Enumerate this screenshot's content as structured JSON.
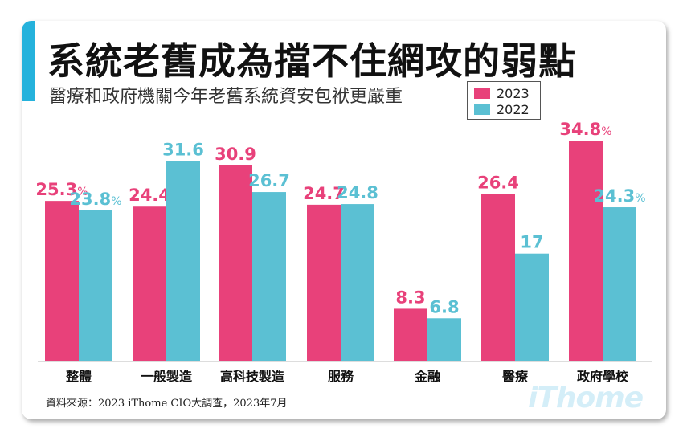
{
  "title": "系統老舊成為擋不住網攻的弱點",
  "subtitle": "醫療和政府機關今年老舊系統資安包袱更嚴重",
  "source": "資料來源：2023 iThome CIO大調查，2023年7月",
  "logo": "iThome",
  "colors": {
    "accent": "#25b2dc",
    "series2023": "#e8417a",
    "series2022": "#5bc0d3"
  },
  "chart_data": {
    "type": "bar",
    "categories": [
      "整體",
      "一般製造",
      "高科技製造",
      "服務",
      "金融",
      "醫療",
      "政府學校"
    ],
    "ylim": [
      0,
      36
    ],
    "grid": false,
    "legend_position": "top-right",
    "series": [
      {
        "name": "2023",
        "values": [
          25.3,
          24.4,
          30.9,
          24.7,
          8.3,
          26.4,
          34.8
        ],
        "labels": [
          "25.3",
          "24.4",
          "30.9",
          "24.7",
          "8.3",
          "26.4",
          "34.8"
        ],
        "pct": [
          "%",
          "",
          "",
          "",
          "",
          "",
          "%"
        ]
      },
      {
        "name": "2022",
        "values": [
          23.8,
          31.6,
          26.7,
          24.8,
          6.8,
          17,
          24.3
        ],
        "labels": [
          "23.8",
          "31.6",
          "26.7",
          "24.8",
          "6.8",
          "17",
          "24.3"
        ],
        "pct": [
          "%",
          "",
          "",
          "",
          "",
          "",
          "%"
        ]
      }
    ]
  }
}
